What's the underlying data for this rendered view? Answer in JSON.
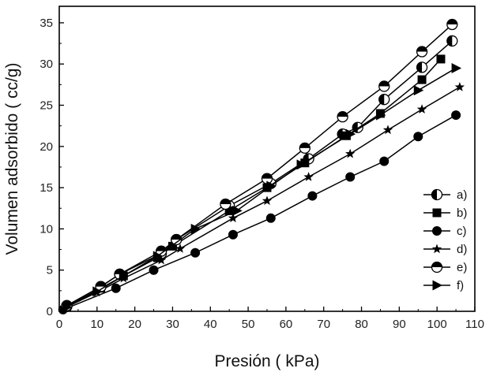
{
  "chart_data": {
    "type": "line",
    "title": "",
    "xlabel": "Presión  ( kPa)",
    "ylabel": "Volumen adsorbido  ( cc/g)",
    "xlim": [
      0,
      110
    ],
    "ylim": [
      0,
      37
    ],
    "xticks": [
      0,
      10,
      20,
      30,
      40,
      50,
      60,
      70,
      80,
      90,
      100,
      110
    ],
    "yticks": [
      0,
      5,
      10,
      15,
      20,
      25,
      30,
      35
    ],
    "grid": false,
    "legend_position": "right-bottom",
    "series": [
      {
        "name": "a)",
        "marker": "circle-half-left",
        "x": [
          2,
          11,
          16,
          27,
          31,
          45,
          56,
          66,
          75,
          79,
          86,
          96,
          104
        ],
        "y": [
          0.6,
          3.0,
          4.5,
          7.0,
          8.7,
          12.8,
          15.5,
          18.5,
          21.5,
          22.3,
          25.7,
          29.6,
          32.8
        ]
      },
      {
        "name": "b)",
        "marker": "square",
        "x": [
          2,
          11,
          17,
          26,
          30,
          45,
          55,
          65,
          76,
          85,
          96,
          101
        ],
        "y": [
          0.5,
          2.8,
          4.3,
          6.5,
          7.9,
          12.2,
          15.0,
          18.0,
          21.3,
          24.0,
          28.1,
          30.6
        ]
      },
      {
        "name": "c)",
        "marker": "circle",
        "x": [
          1,
          15,
          25,
          36,
          46,
          56,
          67,
          77,
          86,
          95,
          105
        ],
        "y": [
          0.2,
          2.8,
          5.0,
          7.1,
          9.3,
          11.3,
          14.0,
          16.3,
          18.2,
          21.2,
          23.8
        ]
      },
      {
        "name": "d)",
        "marker": "star",
        "x": [
          1,
          10,
          17,
          27,
          32,
          46,
          55,
          66,
          77,
          87,
          96,
          106
        ],
        "y": [
          0.3,
          2.3,
          4.0,
          6.2,
          7.6,
          11.3,
          13.4,
          16.3,
          19.1,
          22.0,
          24.5,
          27.2
        ]
      },
      {
        "name": "e)",
        "marker": "circle-half-top",
        "x": [
          2,
          11,
          16,
          27,
          31,
          44,
          55,
          65,
          75,
          86,
          96,
          104
        ],
        "y": [
          0.7,
          3.0,
          4.5,
          7.3,
          8.7,
          13.0,
          16.1,
          19.8,
          23.6,
          27.3,
          31.5,
          34.8
        ]
      },
      {
        "name": "f)",
        "marker": "triangle-right",
        "x": [
          2,
          10,
          17,
          26,
          36,
          47,
          56,
          64,
          77,
          85,
          95,
          105
        ],
        "y": [
          0.5,
          2.4,
          4.3,
          6.7,
          10.0,
          12.2,
          15.2,
          17.8,
          21.5,
          23.8,
          26.8,
          29.5
        ]
      }
    ]
  }
}
